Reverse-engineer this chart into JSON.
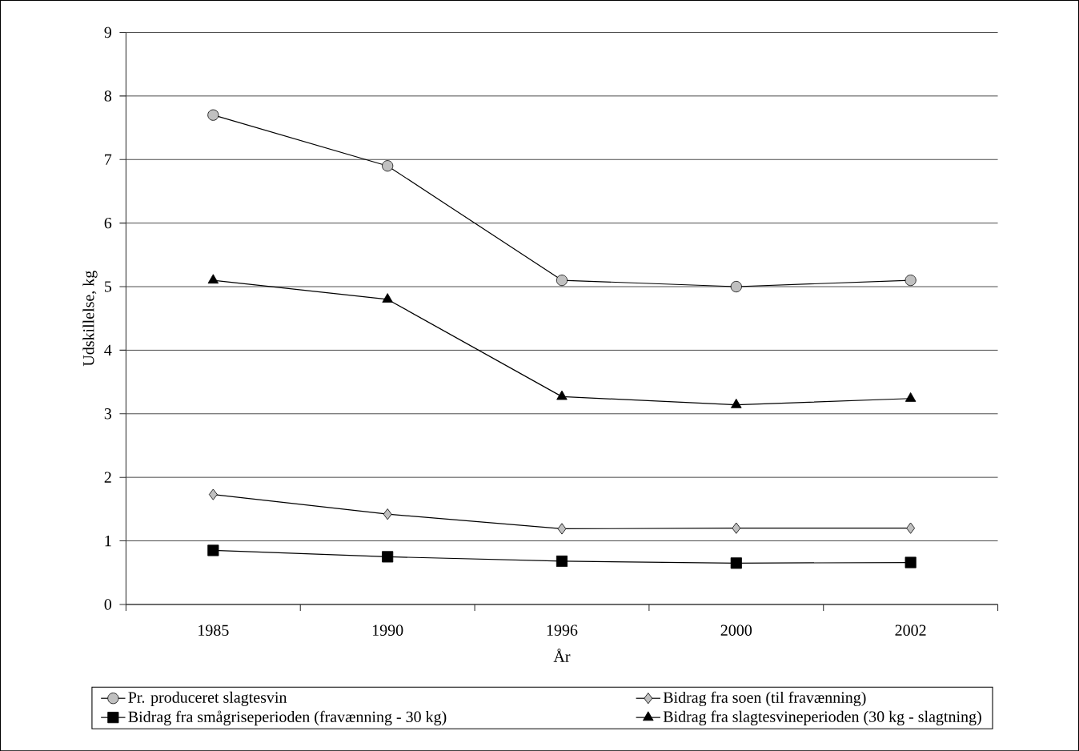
{
  "chart_data": {
    "type": "line",
    "xlabel": "År",
    "ylabel": "Udskillelse, kg",
    "categories": [
      "1985",
      "1990",
      "1996",
      "2000",
      "2002"
    ],
    "ylim": [
      0,
      9
    ],
    "yticks": [
      0,
      1,
      2,
      3,
      4,
      5,
      6,
      7,
      8,
      9
    ],
    "grid": "y",
    "legend": "bottom",
    "line_style": "solid",
    "series": [
      {
        "name": "Pr. produceret slagtesvin",
        "color": "#c0c0c0",
        "marker": "circle",
        "values": [
          7.7,
          6.9,
          5.1,
          5.0,
          5.1
        ]
      },
      {
        "name": "Bidrag fra soen (til fravænning)",
        "color": "#c0c0c0",
        "marker": "diamond",
        "values": [
          1.73,
          1.42,
          1.19,
          1.2,
          1.2
        ]
      },
      {
        "name": "Bidrag fra smågriseperioden (fravænning - 30 kg)",
        "color": "#000000",
        "marker": "square",
        "values": [
          0.85,
          0.75,
          0.68,
          0.65,
          0.66
        ]
      },
      {
        "name": "Bidrag fra slagtesvineperioden (30 kg - slagtning)",
        "color": "#000000",
        "marker": "triangle",
        "values": [
          5.1,
          4.8,
          3.27,
          3.14,
          3.24
        ]
      }
    ]
  }
}
